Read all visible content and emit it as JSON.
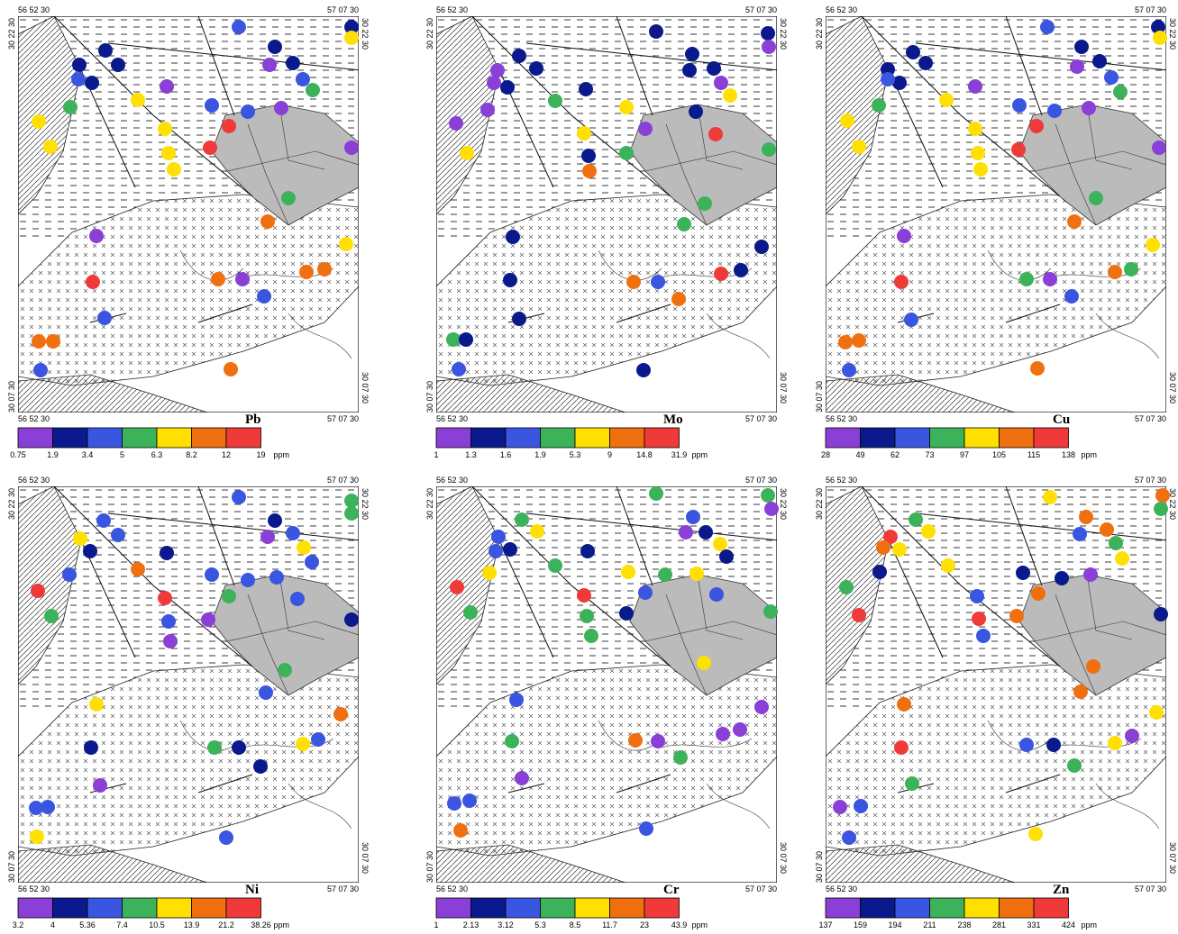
{
  "coordinates": {
    "west": "56 52 30",
    "east": "57 07 30",
    "north": "30 22 30",
    "south": "30 07 30"
  },
  "unit": "ppm",
  "legend_colors": [
    "#8a3fd6",
    "#0a1a8c",
    "#3a55e0",
    "#3cb35a",
    "#ffe000",
    "#f07010",
    "#f03a3a"
  ],
  "panels": [
    {
      "element": "Pb",
      "classes": [
        "0.75",
        "1.9",
        "3.4",
        "5",
        "6.3",
        "8.2",
        "12",
        "19"
      ]
    },
    {
      "element": "Mo",
      "classes": [
        "1",
        "1.3",
        "1.6",
        "1.9",
        "5.3",
        "9",
        "14.8",
        "31.9"
      ]
    },
    {
      "element": "Cu",
      "classes": [
        "28",
        "49",
        "62",
        "73",
        "97",
        "105",
        "115",
        "138"
      ]
    },
    {
      "element": "Ni",
      "classes": [
        "3.2",
        "4",
        "5.36",
        "7.4",
        "10.5",
        "13.9",
        "21.2",
        "38.26"
      ]
    },
    {
      "element": "Cr",
      "classes": [
        "1",
        "2.13",
        "3.12",
        "5.3",
        "8.5",
        "11.7",
        "23",
        "43.9"
      ]
    },
    {
      "element": "Zn",
      "classes": [
        "137",
        "159",
        "194",
        "211",
        "238",
        "281",
        "331",
        "424"
      ]
    }
  ]
}
